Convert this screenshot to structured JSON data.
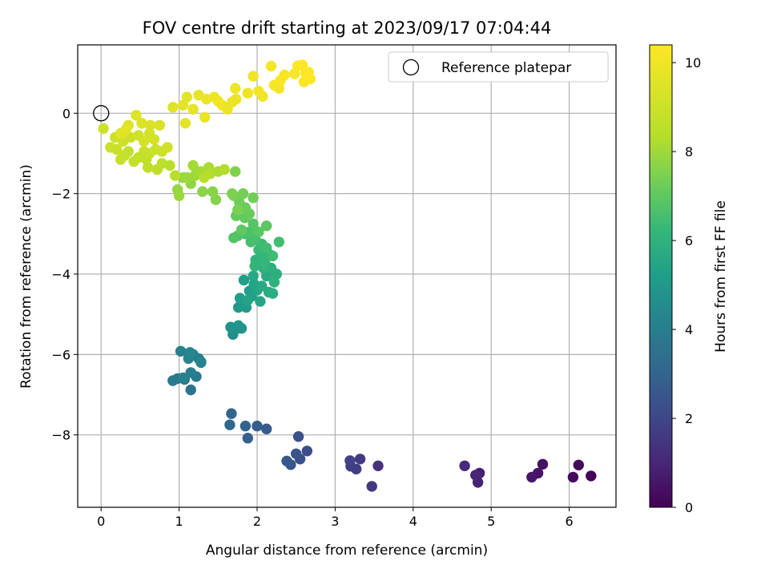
{
  "chart_data": {
    "type": "scatter",
    "title": "FOV centre drift starting at 2023/09/17 07:04:44",
    "xlabel": "Angular distance from reference (arcmin)",
    "ylabel": "Rotation from reference (arcmin)",
    "xlim": [
      -0.3,
      6.6
    ],
    "ylim": [
      -9.8,
      1.7
    ],
    "xticks": [
      0,
      1,
      2,
      3,
      4,
      5,
      6
    ],
    "yticks": [
      0,
      -2,
      -4,
      -6,
      -8
    ],
    "grid": true,
    "colormap": "viridis",
    "colorbar": {
      "label": "Hours from first FF file",
      "range": [
        0,
        10.4
      ],
      "ticks": [
        0,
        2,
        4,
        6,
        8,
        10
      ]
    },
    "legend": {
      "entry": "Reference platepar",
      "placement": "top-right"
    },
    "reference_point": {
      "x": 0,
      "y": 0
    },
    "series": [
      {
        "points": [
          {
            "x": 6.28,
            "y": -9.02,
            "hours": 0.1
          },
          {
            "x": 6.12,
            "y": -8.75,
            "hours": 0.2
          },
          {
            "x": 6.05,
            "y": -9.05,
            "hours": 0.3
          },
          {
            "x": 5.66,
            "y": -8.73,
            "hours": 0.4
          },
          {
            "x": 5.6,
            "y": -8.95,
            "hours": 0.5
          },
          {
            "x": 5.52,
            "y": -9.05,
            "hours": 0.6
          },
          {
            "x": 4.85,
            "y": -8.95,
            "hours": 0.8
          },
          {
            "x": 4.83,
            "y": -9.18,
            "hours": 0.9
          },
          {
            "x": 4.8,
            "y": -9.0,
            "hours": 1.0
          },
          {
            "x": 4.66,
            "y": -8.77,
            "hours": 1.1
          },
          {
            "x": 3.55,
            "y": -8.77,
            "hours": 1.4
          },
          {
            "x": 3.47,
            "y": -9.28,
            "hours": 1.5
          },
          {
            "x": 3.32,
            "y": -8.6,
            "hours": 1.6
          },
          {
            "x": 3.27,
            "y": -8.85,
            "hours": 1.7
          },
          {
            "x": 3.2,
            "y": -8.78,
            "hours": 1.8
          },
          {
            "x": 3.19,
            "y": -8.64,
            "hours": 1.9
          },
          {
            "x": 2.64,
            "y": -8.4,
            "hours": 2.2
          },
          {
            "x": 2.55,
            "y": -8.6,
            "hours": 2.3
          },
          {
            "x": 2.53,
            "y": -8.04,
            "hours": 2.35
          },
          {
            "x": 2.5,
            "y": -8.47,
            "hours": 2.4
          },
          {
            "x": 2.43,
            "y": -8.74,
            "hours": 2.5
          },
          {
            "x": 2.38,
            "y": -8.65,
            "hours": 2.55
          },
          {
            "x": 2.12,
            "y": -7.85,
            "hours": 2.7
          },
          {
            "x": 2.0,
            "y": -7.78,
            "hours": 2.8
          },
          {
            "x": 1.88,
            "y": -8.08,
            "hours": 2.9
          },
          {
            "x": 1.85,
            "y": -7.78,
            "hours": 2.95
          },
          {
            "x": 1.67,
            "y": -7.47,
            "hours": 3.05
          },
          {
            "x": 1.65,
            "y": -7.75,
            "hours": 3.1
          },
          {
            "x": 1.15,
            "y": -6.88,
            "hours": 3.6
          },
          {
            "x": 1.07,
            "y": -6.62,
            "hours": 3.7
          },
          {
            "x": 0.98,
            "y": -6.6,
            "hours": 3.75
          },
          {
            "x": 0.92,
            "y": -6.65,
            "hours": 3.8
          },
          {
            "x": 1.22,
            "y": -6.55,
            "hours": 3.85
          },
          {
            "x": 1.28,
            "y": -6.2,
            "hours": 3.9
          },
          {
            "x": 1.15,
            "y": -6.45,
            "hours": 3.95
          },
          {
            "x": 1.25,
            "y": -6.1,
            "hours": 4.0
          },
          {
            "x": 1.18,
            "y": -6.0,
            "hours": 4.05
          },
          {
            "x": 1.02,
            "y": -5.92,
            "hours": 4.1
          },
          {
            "x": 1.05,
            "y": -6.58,
            "hours": 4.15
          },
          {
            "x": 1.12,
            "y": -6.1,
            "hours": 4.2
          },
          {
            "x": 1.28,
            "y": -6.18,
            "hours": 4.25
          },
          {
            "x": 1.14,
            "y": -5.95,
            "hours": 4.3
          },
          {
            "x": 1.69,
            "y": -5.5,
            "hours": 4.6
          },
          {
            "x": 1.72,
            "y": -5.38,
            "hours": 4.7
          },
          {
            "x": 1.66,
            "y": -5.32,
            "hours": 4.75
          },
          {
            "x": 1.8,
            "y": -5.35,
            "hours": 4.8
          },
          {
            "x": 1.76,
            "y": -5.28,
            "hours": 4.85
          },
          {
            "x": 1.76,
            "y": -4.83,
            "hours": 5.0
          },
          {
            "x": 1.83,
            "y": -4.72,
            "hours": 5.05
          },
          {
            "x": 1.86,
            "y": -4.83,
            "hours": 5.1
          },
          {
            "x": 1.78,
            "y": -4.6,
            "hours": 5.15
          },
          {
            "x": 1.9,
            "y": -4.42,
            "hours": 5.2
          },
          {
            "x": 1.83,
            "y": -4.15,
            "hours": 5.25
          },
          {
            "x": 1.93,
            "y": -4.55,
            "hours": 5.3
          },
          {
            "x": 1.96,
            "y": -4.25,
            "hours": 5.4
          },
          {
            "x": 1.88,
            "y": -4.65,
            "hours": 5.45
          },
          {
            "x": 2.04,
            "y": -4.68,
            "hours": 5.5
          },
          {
            "x": 2.0,
            "y": -4.4,
            "hours": 5.55
          },
          {
            "x": 1.95,
            "y": -4.05,
            "hours": 5.6
          },
          {
            "x": 2.06,
            "y": -4.3,
            "hours": 5.65
          },
          {
            "x": 2.12,
            "y": -4.05,
            "hours": 5.7
          },
          {
            "x": 2.15,
            "y": -4.45,
            "hours": 5.75
          },
          {
            "x": 2.2,
            "y": -4.48,
            "hours": 5.8
          },
          {
            "x": 2.25,
            "y": -4.0,
            "hours": 5.85
          },
          {
            "x": 2.18,
            "y": -3.85,
            "hours": 5.9
          },
          {
            "x": 2.22,
            "y": -4.2,
            "hours": 5.95
          },
          {
            "x": 2.08,
            "y": -3.85,
            "hours": 6.0
          },
          {
            "x": 1.98,
            "y": -3.65,
            "hours": 6.05
          },
          {
            "x": 2.05,
            "y": -3.55,
            "hours": 6.1
          },
          {
            "x": 1.97,
            "y": -3.8,
            "hours": 6.15
          },
          {
            "x": 2.1,
            "y": -3.72,
            "hours": 6.2
          },
          {
            "x": 2.15,
            "y": -3.5,
            "hours": 6.25
          },
          {
            "x": 2.02,
            "y": -3.4,
            "hours": 6.3
          },
          {
            "x": 2.06,
            "y": -3.25,
            "hours": 6.35
          },
          {
            "x": 2.2,
            "y": -3.55,
            "hours": 6.4
          },
          {
            "x": 2.12,
            "y": -3.35,
            "hours": 6.45
          },
          {
            "x": 2.28,
            "y": -3.2,
            "hours": 6.5
          },
          {
            "x": 1.98,
            "y": -3.15,
            "hours": 6.55
          },
          {
            "x": 1.92,
            "y": -3.2,
            "hours": 6.6
          },
          {
            "x": 1.85,
            "y": -3.0,
            "hours": 6.65
          },
          {
            "x": 1.9,
            "y": -2.95,
            "hours": 6.7
          },
          {
            "x": 1.75,
            "y": -3.05,
            "hours": 6.75
          },
          {
            "x": 1.7,
            "y": -3.1,
            "hours": 6.8
          },
          {
            "x": 1.95,
            "y": -2.75,
            "hours": 6.85
          },
          {
            "x": 2.02,
            "y": -2.95,
            "hours": 6.9
          },
          {
            "x": 2.12,
            "y": -2.8,
            "hours": 6.95
          },
          {
            "x": 1.8,
            "y": -2.9,
            "hours": 7.0
          },
          {
            "x": 1.84,
            "y": -2.6,
            "hours": 7.05
          },
          {
            "x": 1.73,
            "y": -2.55,
            "hours": 7.1
          },
          {
            "x": 1.9,
            "y": -2.5,
            "hours": 7.15
          },
          {
            "x": 1.85,
            "y": -2.35,
            "hours": 7.2
          },
          {
            "x": 1.77,
            "y": -2.2,
            "hours": 7.25
          },
          {
            "x": 1.95,
            "y": -2.1,
            "hours": 7.3
          },
          {
            "x": 1.82,
            "y": -2.0,
            "hours": 7.35
          },
          {
            "x": 1.7,
            "y": -2.05,
            "hours": 7.4
          },
          {
            "x": 1.75,
            "y": -2.4,
            "hours": 7.45
          },
          {
            "x": 1.68,
            "y": -2.0,
            "hours": 7.5
          },
          {
            "x": 1.72,
            "y": -1.45,
            "hours": 7.55
          },
          {
            "x": 1.47,
            "y": -2.15,
            "hours": 7.6
          },
          {
            "x": 1.43,
            "y": -1.95,
            "hours": 7.65
          },
          {
            "x": 1.3,
            "y": -1.95,
            "hours": 7.7
          },
          {
            "x": 1.15,
            "y": -1.75,
            "hours": 7.75
          },
          {
            "x": 1.05,
            "y": -1.6,
            "hours": 7.8
          },
          {
            "x": 0.98,
            "y": -1.9,
            "hours": 7.85
          },
          {
            "x": 1.0,
            "y": -2.05,
            "hours": 7.9
          },
          {
            "x": 1.1,
            "y": -1.6,
            "hours": 7.95
          },
          {
            "x": 1.2,
            "y": -1.55,
            "hours": 8.0
          },
          {
            "x": 1.18,
            "y": -1.3,
            "hours": 8.05
          },
          {
            "x": 1.28,
            "y": -1.45,
            "hours": 8.1
          },
          {
            "x": 1.38,
            "y": -1.35,
            "hours": 8.15
          },
          {
            "x": 1.5,
            "y": -1.45,
            "hours": 8.2
          },
          {
            "x": 1.58,
            "y": -1.4,
            "hours": 8.25
          },
          {
            "x": 1.4,
            "y": -1.5,
            "hours": 8.3
          },
          {
            "x": 1.32,
            "y": -1.6,
            "hours": 8.35
          },
          {
            "x": 0.95,
            "y": -1.55,
            "hours": 8.4
          },
          {
            "x": 0.88,
            "y": -1.3,
            "hours": 8.45
          },
          {
            "x": 0.78,
            "y": -1.25,
            "hours": 8.5
          },
          {
            "x": 0.72,
            "y": -1.4,
            "hours": 8.55
          },
          {
            "x": 0.6,
            "y": -1.35,
            "hours": 8.6
          },
          {
            "x": 0.58,
            "y": -1.15,
            "hours": 8.65
          },
          {
            "x": 0.48,
            "y": -1.1,
            "hours": 8.7
          },
          {
            "x": 0.42,
            "y": -1.2,
            "hours": 8.75
          },
          {
            "x": 0.55,
            "y": -0.95,
            "hours": 8.8
          },
          {
            "x": 0.62,
            "y": -1.0,
            "hours": 8.85
          },
          {
            "x": 0.7,
            "y": -0.9,
            "hours": 8.9
          },
          {
            "x": 0.78,
            "y": -0.95,
            "hours": 8.95
          },
          {
            "x": 0.85,
            "y": -0.85,
            "hours": 9.0
          },
          {
            "x": 0.35,
            "y": -0.95,
            "hours": 8.7
          },
          {
            "x": 0.3,
            "y": -1.05,
            "hours": 8.75
          },
          {
            "x": 0.25,
            "y": -1.15,
            "hours": 8.8
          },
          {
            "x": 0.2,
            "y": -0.9,
            "hours": 8.85
          },
          {
            "x": 0.12,
            "y": -0.85,
            "hours": 8.9
          },
          {
            "x": 0.18,
            "y": -0.6,
            "hours": 8.95
          },
          {
            "x": 0.28,
            "y": -0.7,
            "hours": 9.0
          },
          {
            "x": 0.38,
            "y": -0.6,
            "hours": 9.05
          },
          {
            "x": 0.48,
            "y": -0.55,
            "hours": 9.1
          },
          {
            "x": 0.55,
            "y": -0.7,
            "hours": 9.15
          },
          {
            "x": 0.62,
            "y": -0.5,
            "hours": 9.2
          },
          {
            "x": 0.68,
            "y": -0.65,
            "hours": 9.25
          },
          {
            "x": 0.75,
            "y": -0.3,
            "hours": 9.3
          },
          {
            "x": 0.63,
            "y": -0.3,
            "hours": 9.35
          },
          {
            "x": 0.52,
            "y": -0.25,
            "hours": 9.4
          },
          {
            "x": 0.45,
            "y": -0.05,
            "hours": 9.45
          },
          {
            "x": 0.35,
            "y": -0.3,
            "hours": 9.5
          },
          {
            "x": 0.25,
            "y": -0.5,
            "hours": 9.55
          },
          {
            "x": 0.32,
            "y": -0.4,
            "hours": 9.6
          },
          {
            "x": 0.03,
            "y": -0.38,
            "hours": 9.0
          },
          {
            "x": 0.92,
            "y": 0.15,
            "hours": 9.5
          },
          {
            "x": 1.05,
            "y": 0.2,
            "hours": 9.55
          },
          {
            "x": 1.1,
            "y": 0.4,
            "hours": 9.6
          },
          {
            "x": 1.08,
            "y": -0.25,
            "hours": 9.65
          },
          {
            "x": 1.18,
            "y": 0.1,
            "hours": 9.7
          },
          {
            "x": 1.25,
            "y": 0.45,
            "hours": 9.75
          },
          {
            "x": 1.33,
            "y": -0.1,
            "hours": 9.8
          },
          {
            "x": 1.35,
            "y": 0.35,
            "hours": 9.85
          },
          {
            "x": 1.45,
            "y": 0.4,
            "hours": 9.9
          },
          {
            "x": 1.5,
            "y": 0.3,
            "hours": 9.95
          },
          {
            "x": 1.55,
            "y": 0.2,
            "hours": 10.0
          },
          {
            "x": 1.62,
            "y": 0.1,
            "hours": 9.9
          },
          {
            "x": 1.68,
            "y": 0.28,
            "hours": 9.85
          },
          {
            "x": 1.73,
            "y": 0.35,
            "hours": 9.9
          },
          {
            "x": 1.72,
            "y": 0.62,
            "hours": 9.95
          },
          {
            "x": 1.88,
            "y": 0.5,
            "hours": 10.0
          },
          {
            "x": 1.95,
            "y": 0.92,
            "hours": 10.05
          },
          {
            "x": 2.02,
            "y": 0.55,
            "hours": 10.1
          },
          {
            "x": 2.07,
            "y": 0.42,
            "hours": 10.05
          },
          {
            "x": 2.18,
            "y": 1.17,
            "hours": 10.15
          },
          {
            "x": 2.22,
            "y": 0.7,
            "hours": 10.1
          },
          {
            "x": 2.28,
            "y": 0.62,
            "hours": 10.15
          },
          {
            "x": 2.35,
            "y": 0.95,
            "hours": 10.2
          },
          {
            "x": 2.3,
            "y": 0.82,
            "hours": 10.25
          },
          {
            "x": 2.48,
            "y": 0.98,
            "hours": 10.2
          },
          {
            "x": 2.52,
            "y": 1.18,
            "hours": 10.3
          },
          {
            "x": 2.58,
            "y": 1.2,
            "hours": 10.35
          },
          {
            "x": 2.62,
            "y": 1.0,
            "hours": 10.3
          },
          {
            "x": 2.6,
            "y": 0.78,
            "hours": 10.35
          },
          {
            "x": 2.68,
            "y": 0.85,
            "hours": 10.4
          },
          {
            "x": 2.66,
            "y": 1.02,
            "hours": 10.4
          }
        ]
      }
    ]
  }
}
